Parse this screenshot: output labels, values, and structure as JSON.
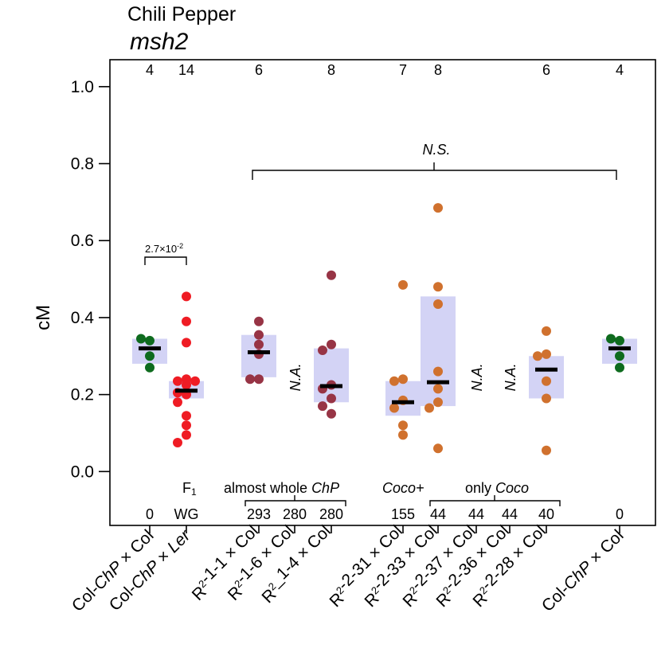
{
  "header": {
    "title": "Chili Pepper",
    "subtitle": "msh2"
  },
  "colors": {
    "green": "#0e6b1e",
    "red": "#ef1c24",
    "maroon": "#973445",
    "orange": "#d0712e",
    "iqr": "#d3d3f5"
  },
  "chart_data": {
    "type": "scatter",
    "ylabel": "cM",
    "ylim": [
      -0.14,
      1.07
    ],
    "yticks": [
      0.0,
      0.2,
      0.4,
      0.6,
      0.8,
      1.0
    ],
    "ytick_labels": [
      "0.0",
      "0.2",
      "0.4",
      "0.6",
      "0.8",
      "1.0"
    ],
    "categories": [
      {
        "label": "Col-ChP × Col",
        "label_parts": [
          {
            "t": "Col-"
          },
          {
            "t": "ChP",
            "i": true
          },
          {
            "t": " × Col"
          }
        ],
        "n": "4",
        "bottom": "0",
        "color": "green",
        "values": [
          0.27,
          0.3,
          0.34,
          0.345
        ],
        "median": 0.32,
        "q1": 0.28,
        "q3": 0.345,
        "na": false
      },
      {
        "label": "Col-ChP × Ler",
        "label_parts": [
          {
            "t": "Col-"
          },
          {
            "t": "ChP",
            "i": true
          },
          {
            "t": " × "
          },
          {
            "t": "Ler",
            "i": true
          }
        ],
        "n": "14",
        "bottom": "WG",
        "color": "red",
        "values": [
          0.455,
          0.39,
          0.335,
          0.24,
          0.235,
          0.235,
          0.225,
          0.205,
          0.2,
          0.18,
          0.145,
          0.12,
          0.095,
          0.075
        ],
        "median": 0.21,
        "q1": 0.19,
        "q3": 0.235,
        "na": false
      },
      {
        "label": "R²-1-1 × Col",
        "label_parts": [
          {
            "t": "R"
          },
          {
            "t": "2",
            "s": true
          },
          {
            "t": "-1-1 × Col"
          }
        ],
        "n": "6",
        "bottom": "293",
        "color": "maroon",
        "values": [
          0.39,
          0.355,
          0.33,
          0.305,
          0.24,
          0.24
        ],
        "median": 0.31,
        "q1": 0.245,
        "q3": 0.355,
        "na": false
      },
      {
        "label": "R²-1-6 × Col",
        "label_parts": [
          {
            "t": "R"
          },
          {
            "t": "2",
            "s": true
          },
          {
            "t": "-1-6 × Col"
          }
        ],
        "n": "",
        "bottom": "280",
        "color": "maroon",
        "values": [],
        "median": null,
        "q1": null,
        "q3": null,
        "na": true
      },
      {
        "label": "R²_1-4 × Col",
        "label_parts": [
          {
            "t": "R"
          },
          {
            "t": "2",
            "s": true
          },
          {
            "t": "_1-4 × Col"
          }
        ],
        "n": "8",
        "bottom": "280",
        "color": "maroon",
        "values": [
          0.51,
          0.33,
          0.315,
          0.225,
          0.215,
          0.19,
          0.17,
          0.15
        ],
        "median": 0.222,
        "q1": 0.18,
        "q3": 0.32,
        "na": false
      },
      {
        "label": "R²-2-31 × Col",
        "label_parts": [
          {
            "t": "R"
          },
          {
            "t": "2",
            "s": true
          },
          {
            "t": "-2-31 × Col"
          }
        ],
        "n": "7",
        "bottom": "155",
        "color": "orange",
        "values": [
          0.485,
          0.24,
          0.235,
          0.185,
          0.12,
          0.095,
          0.165
        ],
        "median": 0.18,
        "q1": 0.145,
        "q3": 0.235,
        "na": false
      },
      {
        "label": "R²-2-33 × Col",
        "label_parts": [
          {
            "t": "R"
          },
          {
            "t": "2",
            "s": true
          },
          {
            "t": "-2-33 × Col"
          }
        ],
        "n": "8",
        "bottom": "44",
        "color": "orange",
        "values": [
          0.685,
          0.48,
          0.435,
          0.26,
          0.215,
          0.18,
          0.165,
          0.06
        ],
        "median": 0.232,
        "q1": 0.17,
        "q3": 0.455,
        "na": false
      },
      {
        "label": "R²-2-37 × Col",
        "label_parts": [
          {
            "t": "R"
          },
          {
            "t": "2",
            "s": true
          },
          {
            "t": "-2-37 × Col"
          }
        ],
        "n": "",
        "bottom": "44",
        "color": "orange",
        "values": [],
        "median": null,
        "q1": null,
        "q3": null,
        "na": true
      },
      {
        "label": "R²-2-36 × Col",
        "label_parts": [
          {
            "t": "R"
          },
          {
            "t": "2",
            "s": true
          },
          {
            "t": "-2-36 × Col"
          }
        ],
        "n": "",
        "bottom": "44",
        "color": "orange",
        "values": [],
        "median": null,
        "q1": null,
        "q3": null,
        "na": true
      },
      {
        "label": "R²-2-28 × Col",
        "label_parts": [
          {
            "t": "R"
          },
          {
            "t": "2",
            "s": true
          },
          {
            "t": "-2-28 × Col"
          }
        ],
        "n": "6",
        "bottom": "40",
        "color": "orange",
        "values": [
          0.365,
          0.305,
          0.3,
          0.235,
          0.19,
          0.055
        ],
        "median": 0.265,
        "q1": 0.19,
        "q3": 0.3,
        "na": false
      },
      {
        "label": "Col-ChP × Col",
        "label_parts": [
          {
            "t": "Col-"
          },
          {
            "t": "ChP",
            "i": true
          },
          {
            "t": " × Col"
          }
        ],
        "n": "4",
        "bottom": "0",
        "color": "green",
        "values": [
          0.27,
          0.3,
          0.34,
          0.345
        ],
        "median": 0.32,
        "q1": 0.28,
        "q3": 0.345,
        "na": false
      }
    ],
    "na_label": "N.A.",
    "annotations": {
      "pvalue": "2.7×10",
      "pvalue_exp": "-2",
      "ns": "N.S."
    },
    "group_labels": {
      "f1": "F",
      "f1_sub": "1",
      "almost_prefix": "almost whole ",
      "almost_italic": "ChP",
      "coco_plus": "Coco+",
      "only_prefix": "only ",
      "only_italic": "Coco"
    }
  }
}
